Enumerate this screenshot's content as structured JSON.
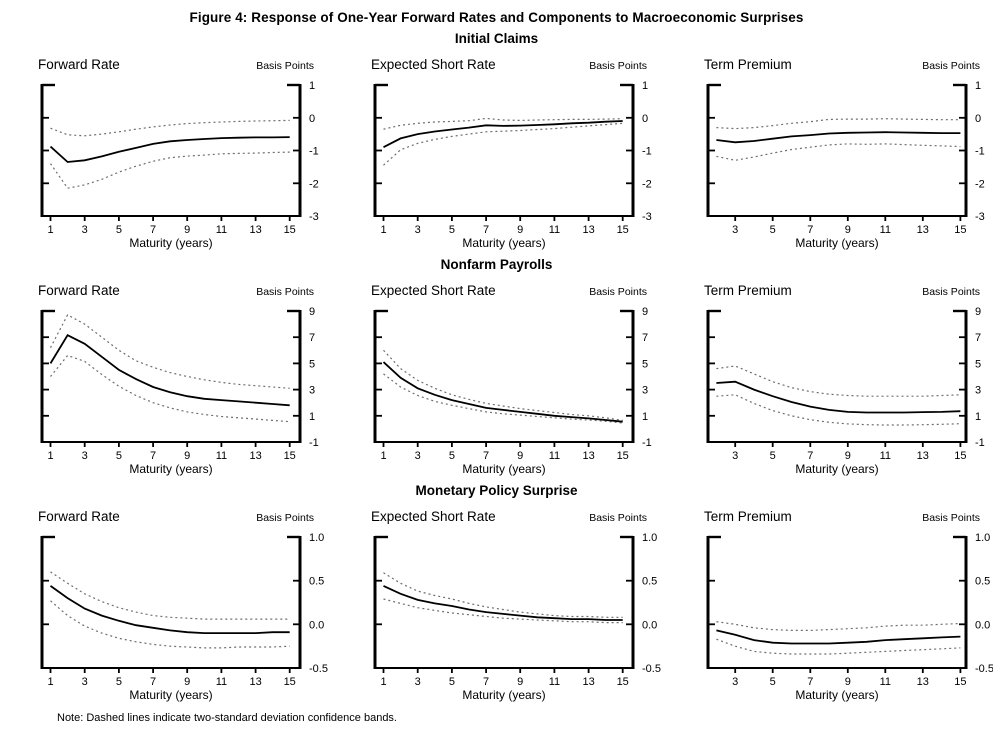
{
  "title": "Figure 4: Response of One-Year Forward Rates and Components to Macroeconomic Surprises",
  "note": "Note: Dashed lines indicate two-standard deviation confidence bands.",
  "colors": {
    "response_line": "#000000",
    "confidence_band": "#6e6e6e",
    "axis": "#000000"
  },
  "chart_data": [
    {
      "group_title": "Initial Claims",
      "type": "line",
      "unit": "Basis Points",
      "xlabel": "Maturity (years)",
      "ylim": [
        -3,
        1
      ],
      "yticks": [
        1,
        0,
        -1,
        -2,
        -3
      ],
      "ytick_labels": [
        "1",
        "0",
        "-1",
        "-2",
        "-3"
      ],
      "panels": [
        {
          "title": "Forward Rate",
          "xlim": [
            0.5,
            15.6
          ],
          "xticks": [
            1,
            3,
            5,
            7,
            9,
            11,
            13,
            15
          ],
          "x": [
            1,
            2,
            3,
            4,
            5,
            6,
            7,
            8,
            9,
            10,
            11,
            12,
            13,
            14,
            15
          ],
          "series": [
            {
              "name": "upper confidence band",
              "style": "dashed",
              "values": [
                -0.32,
                -0.52,
                -0.55,
                -0.5,
                -0.43,
                -0.35,
                -0.28,
                -0.22,
                -0.18,
                -0.15,
                -0.13,
                -0.11,
                -0.1,
                -0.09,
                -0.08
              ]
            },
            {
              "name": "lower confidence band",
              "style": "dashed",
              "values": [
                -1.4,
                -2.15,
                -2.05,
                -1.88,
                -1.66,
                -1.48,
                -1.33,
                -1.22,
                -1.17,
                -1.14,
                -1.1,
                -1.09,
                -1.08,
                -1.06,
                -1.05
              ]
            },
            {
              "name": "response",
              "style": "solid",
              "values": [
                -0.88,
                -1.35,
                -1.3,
                -1.18,
                -1.04,
                -0.92,
                -0.8,
                -0.72,
                -0.68,
                -0.65,
                -0.62,
                -0.61,
                -0.6,
                -0.6,
                -0.59
              ]
            }
          ]
        },
        {
          "title": "Expected Short Rate",
          "xlim": [
            0.5,
            15.6
          ],
          "xticks": [
            1,
            3,
            5,
            7,
            9,
            11,
            13,
            15
          ],
          "x": [
            1,
            2,
            3,
            4,
            5,
            6,
            7,
            8,
            9,
            10,
            11,
            12,
            13,
            14,
            15
          ],
          "series": [
            {
              "name": "upper confidence band",
              "style": "dashed",
              "values": [
                -0.35,
                -0.23,
                -0.17,
                -0.13,
                -0.11,
                -0.09,
                -0.02,
                -0.07,
                -0.08,
                -0.07,
                -0.06,
                -0.05,
                -0.05,
                -0.04,
                -0.03
              ]
            },
            {
              "name": "lower confidence band",
              "style": "dashed",
              "values": [
                -1.45,
                -0.98,
                -0.78,
                -0.66,
                -0.57,
                -0.5,
                -0.43,
                -0.41,
                -0.39,
                -0.36,
                -0.33,
                -0.29,
                -0.25,
                -0.21,
                -0.17
              ]
            },
            {
              "name": "response",
              "style": "solid",
              "values": [
                -0.9,
                -0.63,
                -0.5,
                -0.42,
                -0.36,
                -0.3,
                -0.23,
                -0.25,
                -0.24,
                -0.22,
                -0.2,
                -0.17,
                -0.15,
                -0.12,
                -0.1
              ]
            }
          ]
        },
        {
          "title": "Term Premium",
          "xlim": [
            1.55,
            15.3
          ],
          "xticks": [
            3,
            5,
            7,
            9,
            11,
            13,
            15
          ],
          "x": [
            2,
            3,
            4,
            5,
            6,
            7,
            8,
            9,
            10,
            11,
            12,
            13,
            14,
            15
          ],
          "series": [
            {
              "name": "upper confidence band",
              "style": "dashed",
              "values": [
                -0.3,
                -0.33,
                -0.3,
                -0.24,
                -0.17,
                -0.12,
                -0.05,
                -0.04,
                -0.04,
                -0.03,
                -0.04,
                -0.05,
                -0.06,
                -0.06
              ]
            },
            {
              "name": "lower confidence band",
              "style": "dashed",
              "values": [
                -1.18,
                -1.3,
                -1.2,
                -1.08,
                -0.97,
                -0.9,
                -0.83,
                -0.8,
                -0.81,
                -0.8,
                -0.82,
                -0.84,
                -0.86,
                -0.88
              ]
            },
            {
              "name": "response",
              "style": "solid",
              "values": [
                -0.68,
                -0.75,
                -0.71,
                -0.64,
                -0.57,
                -0.53,
                -0.48,
                -0.46,
                -0.45,
                -0.44,
                -0.45,
                -0.46,
                -0.47,
                -0.47
              ]
            }
          ]
        }
      ]
    },
    {
      "group_title": "Nonfarm Payrolls",
      "type": "line",
      "unit": "Basis Points",
      "xlabel": "Maturity (years)",
      "ylim": [
        -1,
        9
      ],
      "yticks": [
        9,
        7,
        5,
        3,
        1,
        -1
      ],
      "ytick_labels": [
        "9",
        "7",
        "5",
        "3",
        "1",
        "-1"
      ],
      "panels": [
        {
          "title": "Forward Rate",
          "xlim": [
            0.5,
            15.6
          ],
          "xticks": [
            1,
            3,
            5,
            7,
            9,
            11,
            13,
            15
          ],
          "x": [
            1,
            2,
            3,
            4,
            5,
            6,
            7,
            8,
            9,
            10,
            11,
            12,
            13,
            14,
            15
          ],
          "series": [
            {
              "name": "upper confidence band",
              "style": "dashed",
              "values": [
                6.2,
                8.7,
                8.0,
                7.0,
                6.0,
                5.2,
                4.7,
                4.3,
                4.0,
                3.75,
                3.55,
                3.4,
                3.3,
                3.2,
                3.1
              ]
            },
            {
              "name": "lower confidence band",
              "style": "dashed",
              "values": [
                4.0,
                5.6,
                5.15,
                4.15,
                3.25,
                2.55,
                2.0,
                1.6,
                1.3,
                1.1,
                0.95,
                0.85,
                0.75,
                0.65,
                0.55
              ]
            },
            {
              "name": "response",
              "style": "solid",
              "values": [
                5.0,
                7.15,
                6.5,
                5.5,
                4.5,
                3.8,
                3.2,
                2.8,
                2.5,
                2.3,
                2.2,
                2.1,
                2.0,
                1.9,
                1.8
              ]
            }
          ]
        },
        {
          "title": "Expected Short Rate",
          "xlim": [
            0.5,
            15.6
          ],
          "xticks": [
            1,
            3,
            5,
            7,
            9,
            11,
            13,
            15
          ],
          "x": [
            1,
            2,
            3,
            4,
            5,
            6,
            7,
            8,
            9,
            10,
            11,
            12,
            13,
            14,
            15
          ],
          "series": [
            {
              "name": "upper confidence band",
              "style": "dashed",
              "values": [
                6.0,
                4.6,
                3.7,
                3.1,
                2.6,
                2.25,
                1.95,
                1.75,
                1.55,
                1.4,
                1.25,
                1.1,
                1.0,
                0.85,
                0.65
              ]
            },
            {
              "name": "lower confidence band",
              "style": "dashed",
              "values": [
                4.2,
                3.2,
                2.55,
                2.1,
                1.8,
                1.55,
                1.3,
                1.15,
                1.05,
                0.95,
                0.85,
                0.75,
                0.68,
                0.58,
                0.45
              ]
            },
            {
              "name": "response",
              "style": "solid",
              "values": [
                5.1,
                3.9,
                3.1,
                2.6,
                2.2,
                1.9,
                1.6,
                1.45,
                1.3,
                1.15,
                1.0,
                0.9,
                0.8,
                0.68,
                0.55
              ]
            }
          ]
        },
        {
          "title": "Term Premium",
          "xlim": [
            1.55,
            15.3
          ],
          "xticks": [
            3,
            5,
            7,
            9,
            11,
            13,
            15
          ],
          "x": [
            2,
            3,
            4,
            5,
            6,
            7,
            8,
            9,
            10,
            11,
            12,
            13,
            14,
            15
          ],
          "series": [
            {
              "name": "upper confidence band",
              "style": "dashed",
              "values": [
                4.6,
                4.8,
                4.2,
                3.6,
                3.15,
                2.85,
                2.65,
                2.55,
                2.5,
                2.5,
                2.5,
                2.5,
                2.55,
                2.6
              ]
            },
            {
              "name": "lower confidence band",
              "style": "dashed",
              "values": [
                2.5,
                2.6,
                1.95,
                1.4,
                1.0,
                0.7,
                0.5,
                0.38,
                0.32,
                0.3,
                0.3,
                0.32,
                0.35,
                0.4
              ]
            },
            {
              "name": "response",
              "style": "solid",
              "values": [
                3.5,
                3.6,
                3.0,
                2.5,
                2.05,
                1.7,
                1.45,
                1.3,
                1.25,
                1.25,
                1.25,
                1.28,
                1.3,
                1.35
              ]
            }
          ]
        }
      ]
    },
    {
      "group_title": "Monetary Policy Surprise",
      "type": "line",
      "unit": "Basis Points",
      "xlabel": "Maturity (years)",
      "ylim": [
        -0.5,
        1.0
      ],
      "yticks": [
        1.0,
        0.5,
        0.0,
        -0.5
      ],
      "ytick_labels": [
        "1.0",
        "0.5",
        "0.0",
        "-0.5"
      ],
      "panels": [
        {
          "title": "Forward Rate",
          "xlim": [
            0.5,
            15.6
          ],
          "xticks": [
            1,
            3,
            5,
            7,
            9,
            11,
            13,
            15
          ],
          "x": [
            1,
            2,
            3,
            4,
            5,
            6,
            7,
            8,
            9,
            10,
            11,
            12,
            13,
            14,
            15
          ],
          "series": [
            {
              "name": "upper confidence band",
              "style": "dashed",
              "values": [
                0.6,
                0.47,
                0.35,
                0.26,
                0.19,
                0.14,
                0.1,
                0.08,
                0.07,
                0.06,
                0.06,
                0.06,
                0.06,
                0.06,
                0.06
              ]
            },
            {
              "name": "lower confidence band",
              "style": "dashed",
              "values": [
                0.27,
                0.1,
                -0.02,
                -0.1,
                -0.16,
                -0.2,
                -0.23,
                -0.25,
                -0.26,
                -0.27,
                -0.27,
                -0.26,
                -0.26,
                -0.26,
                -0.25
              ]
            },
            {
              "name": "response",
              "style": "solid",
              "values": [
                0.44,
                0.3,
                0.18,
                0.1,
                0.04,
                -0.01,
                -0.04,
                -0.07,
                -0.09,
                -0.1,
                -0.1,
                -0.1,
                -0.1,
                -0.09,
                -0.09
              ]
            }
          ]
        },
        {
          "title": "Expected Short Rate",
          "xlim": [
            0.5,
            15.6
          ],
          "xticks": [
            1,
            3,
            5,
            7,
            9,
            11,
            13,
            15
          ],
          "x": [
            1,
            2,
            3,
            4,
            5,
            6,
            7,
            8,
            9,
            10,
            11,
            12,
            13,
            14,
            15
          ],
          "series": [
            {
              "name": "upper confidence band",
              "style": "dashed",
              "values": [
                0.59,
                0.47,
                0.38,
                0.33,
                0.29,
                0.24,
                0.2,
                0.17,
                0.14,
                0.12,
                0.1,
                0.09,
                0.09,
                0.08,
                0.08
              ]
            },
            {
              "name": "lower confidence band",
              "style": "dashed",
              "values": [
                0.29,
                0.24,
                0.19,
                0.16,
                0.13,
                0.11,
                0.09,
                0.07,
                0.06,
                0.05,
                0.04,
                0.03,
                0.03,
                0.02,
                0.02
              ]
            },
            {
              "name": "response",
              "style": "solid",
              "values": [
                0.44,
                0.35,
                0.28,
                0.24,
                0.21,
                0.17,
                0.14,
                0.12,
                0.1,
                0.08,
                0.07,
                0.06,
                0.06,
                0.05,
                0.05
              ]
            }
          ]
        },
        {
          "title": "Term Premium",
          "xlim": [
            1.55,
            15.3
          ],
          "xticks": [
            3,
            5,
            7,
            9,
            11,
            13,
            15
          ],
          "x": [
            2,
            3,
            4,
            5,
            6,
            7,
            8,
            9,
            10,
            11,
            12,
            13,
            14,
            15
          ],
          "series": [
            {
              "name": "upper confidence band",
              "style": "dashed",
              "values": [
                0.03,
                0.0,
                -0.04,
                -0.06,
                -0.07,
                -0.07,
                -0.06,
                -0.05,
                -0.04,
                -0.02,
                -0.01,
                -0.01,
                0.0,
                0.01
              ]
            },
            {
              "name": "lower confidence band",
              "style": "dashed",
              "values": [
                -0.17,
                -0.25,
                -0.31,
                -0.33,
                -0.34,
                -0.34,
                -0.34,
                -0.33,
                -0.32,
                -0.31,
                -0.3,
                -0.29,
                -0.28,
                -0.27
              ]
            },
            {
              "name": "response",
              "style": "solid",
              "values": [
                -0.07,
                -0.12,
                -0.18,
                -0.21,
                -0.22,
                -0.22,
                -0.22,
                -0.21,
                -0.2,
                -0.18,
                -0.17,
                -0.16,
                -0.15,
                -0.14
              ]
            }
          ]
        }
      ]
    }
  ]
}
